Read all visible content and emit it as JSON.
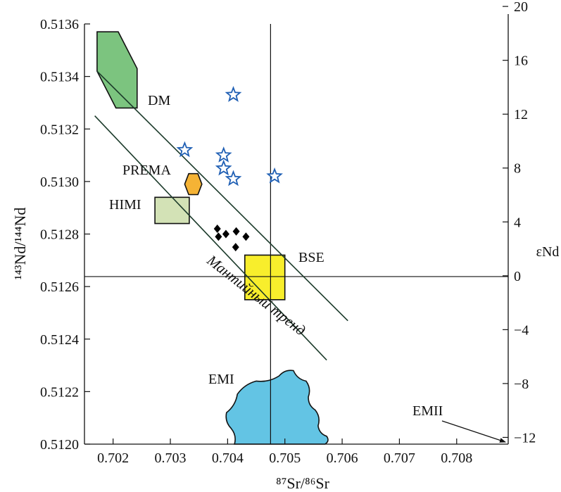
{
  "chart_data": {
    "type": "scatter",
    "xlabel": "⁸⁷Sr/⁸⁶Sr",
    "ylabel": "¹⁴³Nd/¹⁴⁴Nd",
    "y2label": "εNd",
    "xlim": [
      0.7015,
      0.7089
    ],
    "ylim": [
      0.512,
      0.5136
    ],
    "y2lim": [
      -12.5,
      18.7
    ],
    "xticks": [
      "0.702",
      "0.703",
      "0.704",
      "0.705",
      "0.706",
      "0.707",
      "0.708"
    ],
    "yticks": [
      "0.5120",
      "0.5122",
      "0.5124",
      "0.5126",
      "0.5128",
      "0.5130",
      "0.5132",
      "0.5134",
      "0.5136"
    ],
    "y2ticks": [
      "−12",
      "−8",
      "−4",
      "0",
      "4",
      "8",
      "12",
      "16",
      "20"
    ],
    "bse_reference": {
      "x": 0.70475,
      "y": 0.512638
    },
    "series": [
      {
        "marker": "open-star",
        "color": "#1f5fb4",
        "points": [
          [
            0.70325,
            0.51312
          ],
          [
            0.7041,
            0.51333
          ],
          [
            0.70393,
            0.5131
          ],
          [
            0.70393,
            0.51305
          ],
          [
            0.7041,
            0.51301
          ],
          [
            0.70482,
            0.51302
          ]
        ]
      },
      {
        "marker": "filled-diamond",
        "color": "#000000",
        "points": [
          [
            0.70382,
            0.51282
          ],
          [
            0.70397,
            0.5128
          ],
          [
            0.70415,
            0.51281
          ],
          [
            0.70432,
            0.51279
          ],
          [
            0.70384,
            0.51279
          ],
          [
            0.70414,
            0.51275
          ]
        ]
      }
    ],
    "fields": [
      {
        "label": "DM",
        "fill": "#7cc47f",
        "polygon": [
          [
            0.70172,
            0.51357
          ],
          [
            0.70209,
            0.51357
          ],
          [
            0.70242,
            0.51343
          ],
          [
            0.70242,
            0.51328
          ],
          [
            0.70205,
            0.51328
          ],
          [
            0.70172,
            0.51342
          ]
        ]
      },
      {
        "label": "PREMA",
        "fill": "#f5b335",
        "polygon": [
          [
            0.70332,
            0.51303
          ],
          [
            0.70348,
            0.51303
          ],
          [
            0.70355,
            0.51299
          ],
          [
            0.70348,
            0.51295
          ],
          [
            0.70332,
            0.51295
          ],
          [
            0.70325,
            0.51299
          ]
        ]
      },
      {
        "label": "HIMI",
        "fill": "#d3e2b6",
        "polygon": [
          [
            0.70273,
            0.51294
          ],
          [
            0.70333,
            0.51294
          ],
          [
            0.70333,
            0.51284
          ],
          [
            0.70273,
            0.51284
          ]
        ]
      },
      {
        "label": "BSE",
        "fill": "#f8ee2c",
        "polygon": [
          [
            0.7043,
            0.51272
          ],
          [
            0.705,
            0.51272
          ],
          [
            0.705,
            0.51255
          ],
          [
            0.7043,
            0.51255
          ]
        ]
      },
      {
        "label": "EMI",
        "fill": "#63c4e4",
        "polygon": [
          [
            0.70412,
            0.512
          ],
          [
            0.70406,
            0.51206
          ],
          [
            0.70398,
            0.51212
          ],
          [
            0.70417,
            0.51219
          ],
          [
            0.7045,
            0.51224
          ],
          [
            0.7049,
            0.51226
          ],
          [
            0.70515,
            0.51228
          ],
          [
            0.70537,
            0.51224
          ],
          [
            0.70541,
            0.51218
          ],
          [
            0.70553,
            0.51213
          ],
          [
            0.70558,
            0.51207
          ],
          [
            0.70573,
            0.51203
          ],
          [
            0.7057,
            0.512
          ]
        ]
      }
    ],
    "trend": {
      "label": "Мантийный тренд",
      "upper": [
        [
          0.70172,
          0.51342
        ],
        [
          0.7061,
          0.51247
        ]
      ],
      "lower": [
        [
          0.70168,
          0.51325
        ],
        [
          0.70573,
          0.51232
        ]
      ]
    },
    "annotations": [
      {
        "text": "EMII",
        "arrow_to_y2": -11.3
      }
    ]
  }
}
